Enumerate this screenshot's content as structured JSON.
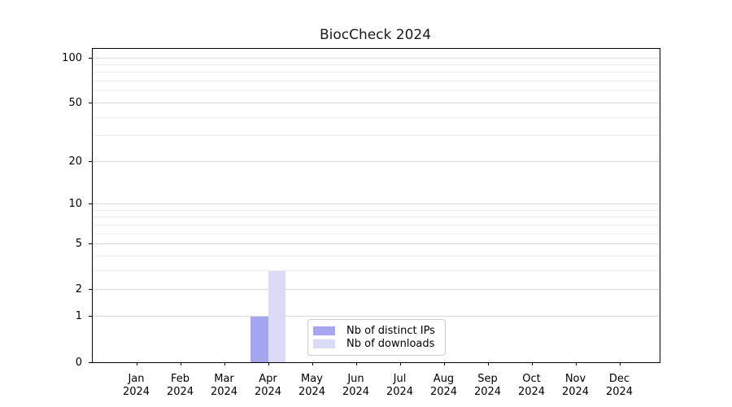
{
  "figure": {
    "title": "BiocCheck 2024"
  },
  "colors": {
    "distinct_ips_bar": "#a5a5f0",
    "downloads_bar": "#dbdbf8",
    "grid_major": "#d9d9d9",
    "grid_minor": "#ececec",
    "axis_spine": "#000000",
    "text": "#1a1a1a",
    "legend_border": "#cccccc",
    "background": "#ffffff"
  },
  "chart_data": {
    "type": "bar",
    "title": "BiocCheck 2024",
    "xlabel": "",
    "ylabel": "",
    "x_categories": [
      "Jan",
      "Feb",
      "Mar",
      "Apr",
      "May",
      "Jun",
      "Jul",
      "Aug",
      "Sep",
      "Oct",
      "Nov",
      "Dec"
    ],
    "x_year": "2024",
    "y_scale": "log1p",
    "ylim": [
      0,
      115
    ],
    "y_major_ticks": [
      0,
      1,
      2,
      5,
      10,
      20,
      50,
      100
    ],
    "y_minor_ticks": [
      3,
      4,
      6,
      7,
      8,
      9,
      30,
      40,
      60,
      70,
      80,
      90
    ],
    "grid": "horizontal-on",
    "legend_position": "lower-center",
    "series": [
      {
        "name": "Nb of distinct IPs",
        "color_key": "distinct_ips_bar",
        "values": [
          0,
          0,
          0,
          1,
          0,
          0,
          0,
          0,
          0,
          0,
          0,
          0
        ]
      },
      {
        "name": "Nb of downloads",
        "color_key": "downloads_bar",
        "values": [
          0,
          0,
          0,
          3,
          0,
          0,
          0,
          0,
          0,
          0,
          0,
          0
        ]
      }
    ]
  }
}
